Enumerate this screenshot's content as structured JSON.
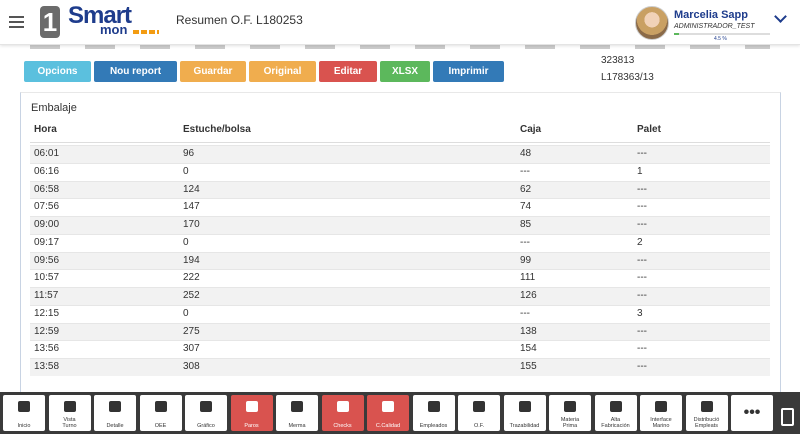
{
  "header": {
    "title": "Resumen O.F. L180253",
    "logo": {
      "number": "1",
      "brand_top": "Smart",
      "brand_bottom": "mon"
    },
    "user": {
      "name": "Marcelia Sapp",
      "role": "ADMINISTRADOR_TEST",
      "progress": "4.5 %"
    }
  },
  "toolbar": {
    "buttons": [
      "Opcions",
      "Nou report",
      "Guardar",
      "Original",
      "Editar",
      "XLSX",
      "Imprimir"
    ]
  },
  "info": [
    "323813",
    "L178363/13"
  ],
  "panel": {
    "title": "Embalaje",
    "table": {
      "columns": [
        "Hora",
        "Estuche/bolsa",
        "Caja",
        "Palet"
      ],
      "rows": [
        [
          "06:01",
          "96",
          "48",
          "---"
        ],
        [
          "06:16",
          "0",
          "---",
          "1"
        ],
        [
          "06:58",
          "124",
          "62",
          "---"
        ],
        [
          "07:56",
          "147",
          "74",
          "---"
        ],
        [
          "09:00",
          "170",
          "85",
          "---"
        ],
        [
          "09:17",
          "0",
          "---",
          "2"
        ],
        [
          "09:56",
          "194",
          "99",
          "---"
        ],
        [
          "10:57",
          "222",
          "111",
          "---"
        ],
        [
          "11:57",
          "252",
          "126",
          "---"
        ],
        [
          "12:15",
          "0",
          "---",
          "3"
        ],
        [
          "12:59",
          "275",
          "138",
          "---"
        ],
        [
          "13:56",
          "307",
          "154",
          "---"
        ],
        [
          "13:58",
          "308",
          "155",
          "---"
        ]
      ]
    }
  },
  "footer": {
    "buttons": [
      "Inicio",
      "Vista\nTurno",
      "Detalle",
      "OEE",
      "Gráfico",
      "Paros",
      "Merma",
      "Checks",
      "C.Calidad",
      "Empleados",
      "O.F.",
      "Trazabilidad",
      "Materia\nPrima",
      "Alta\nFabricación",
      "Interface\nMarino",
      "Distribució\nEmpleats",
      "•••"
    ]
  }
}
